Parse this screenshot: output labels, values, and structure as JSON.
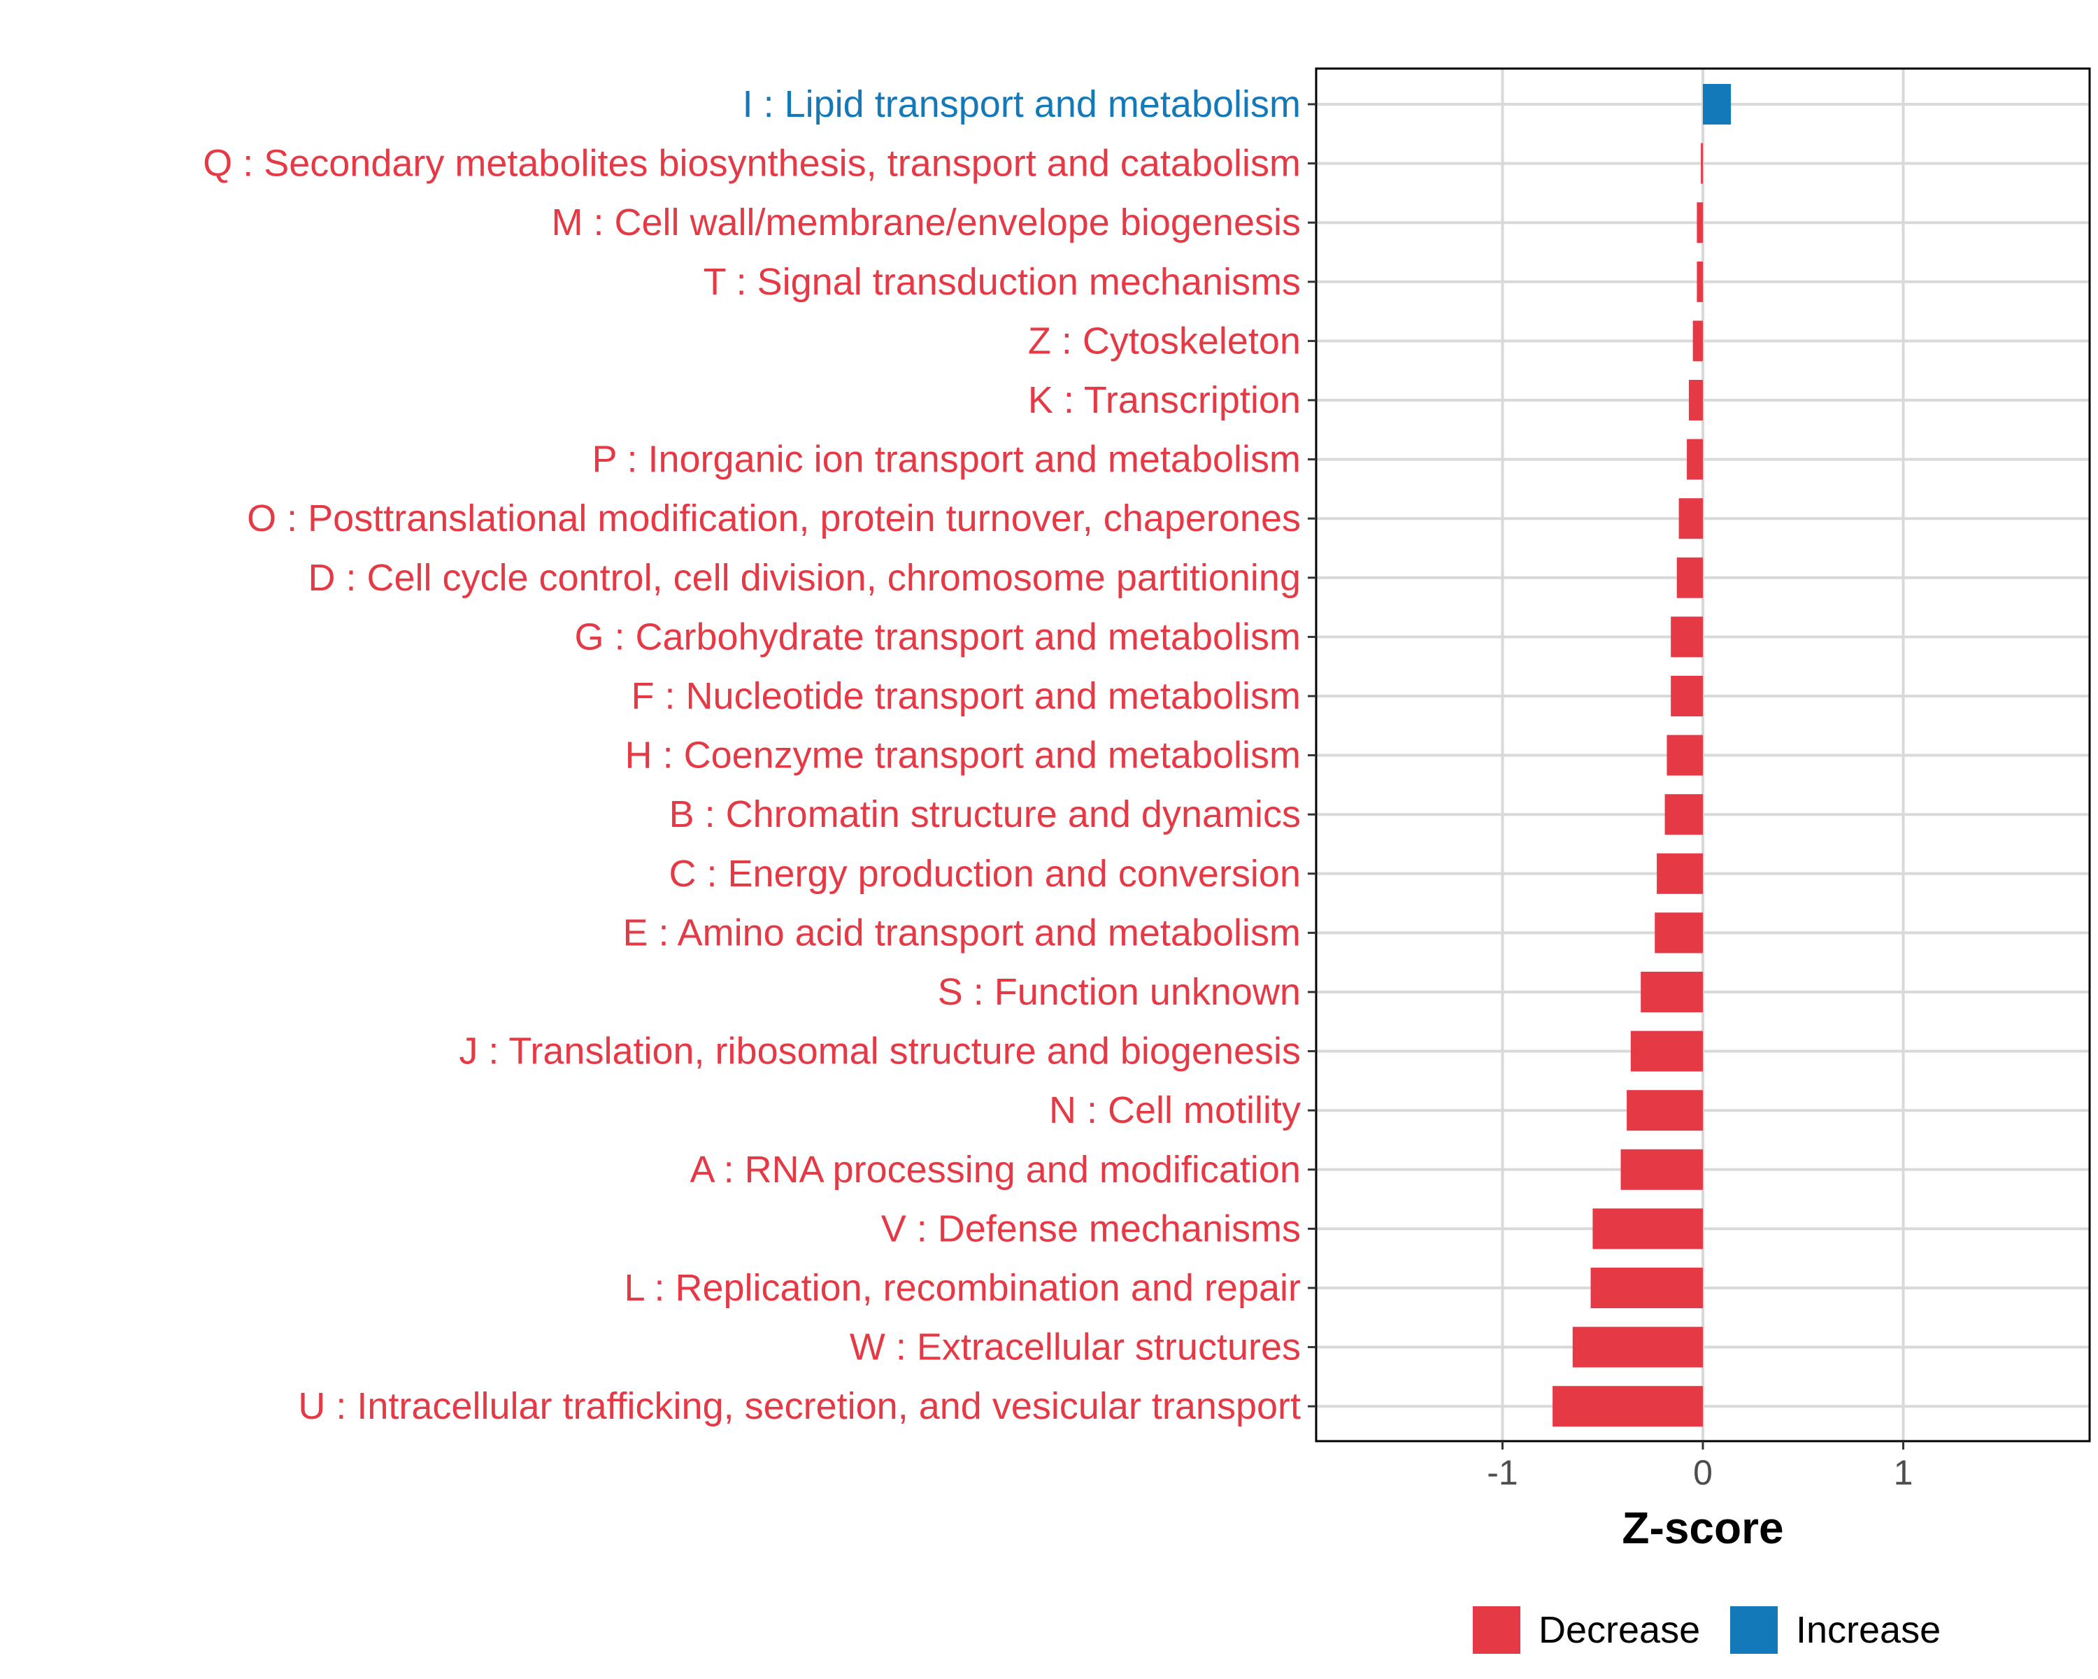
{
  "chart_data": {
    "type": "bar",
    "orientation": "horizontal",
    "title": "",
    "xlabel": "Z-score",
    "ylabel": "",
    "xlim": [
      -1.93,
      1.93
    ],
    "xticks": [
      -1,
      0,
      1
    ],
    "xtick_labels": [
      "-1",
      "0",
      "1"
    ],
    "grid": true,
    "legend_position": "bottom",
    "colors": {
      "Decrease": "#E63946",
      "Increase": "#1479B8"
    },
    "legend": [
      {
        "label": "Decrease",
        "color": "#E63946"
      },
      {
        "label": "Increase",
        "color": "#1479B8"
      }
    ],
    "categories": [
      "I : Lipid transport and metabolism",
      "Q : Secondary metabolites biosynthesis, transport and catabolism",
      "M : Cell wall/membrane/envelope biogenesis",
      "T : Signal transduction mechanisms",
      "Z : Cytoskeleton",
      "K : Transcription",
      "P : Inorganic ion transport and metabolism",
      "O : Posttranslational modification, protein turnover, chaperones",
      "D : Cell cycle control, cell division, chromosome partitioning",
      "G : Carbohydrate transport and metabolism",
      "F : Nucleotide transport and metabolism",
      "H : Coenzyme transport and metabolism",
      "B : Chromatin structure and dynamics",
      "C : Energy production and conversion",
      "E : Amino acid transport and metabolism",
      "S : Function unknown",
      "J : Translation, ribosomal structure and biogenesis",
      "N : Cell motility",
      "A : RNA processing and modification",
      "V : Defense mechanisms",
      "L : Replication, recombination and repair",
      "W : Extracellular structures",
      "U : Intracellular trafficking, secretion, and vesicular transport"
    ],
    "values": [
      0.14,
      -0.01,
      -0.03,
      -0.03,
      -0.05,
      -0.07,
      -0.08,
      -0.12,
      -0.13,
      -0.16,
      -0.16,
      -0.18,
      -0.19,
      -0.23,
      -0.24,
      -0.31,
      -0.36,
      -0.38,
      -0.41,
      -0.55,
      -0.56,
      -0.65,
      -0.75
    ],
    "direction": [
      "Increase",
      "Decrease",
      "Decrease",
      "Decrease",
      "Decrease",
      "Decrease",
      "Decrease",
      "Decrease",
      "Decrease",
      "Decrease",
      "Decrease",
      "Decrease",
      "Decrease",
      "Decrease",
      "Decrease",
      "Decrease",
      "Decrease",
      "Decrease",
      "Decrease",
      "Decrease",
      "Decrease",
      "Decrease",
      "Decrease"
    ]
  }
}
